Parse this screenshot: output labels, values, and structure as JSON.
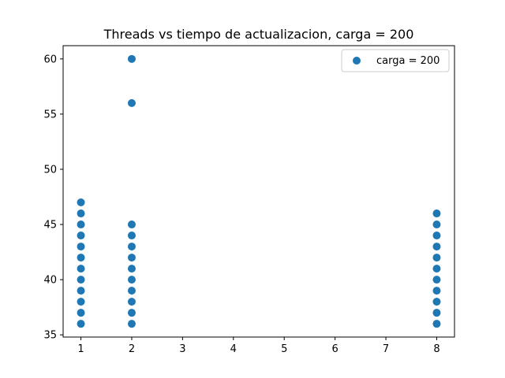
{
  "chart_data": {
    "type": "scatter",
    "title": "Threads vs tiempo de actualizacion, carga = 200",
    "xlabel": "",
    "ylabel": "",
    "xlim": [
      0.65,
      8.35
    ],
    "ylim": [
      34.8,
      61.2
    ],
    "xticks": [
      1,
      2,
      3,
      4,
      5,
      6,
      7,
      8
    ],
    "yticks": [
      35,
      40,
      45,
      50,
      55,
      60
    ],
    "grid": false,
    "legend_position": "upper-right",
    "series": [
      {
        "name": "carga = 200",
        "color": "#1f77b4",
        "points": [
          [
            1,
            36
          ],
          [
            1,
            37
          ],
          [
            1,
            38
          ],
          [
            1,
            39
          ],
          [
            1,
            40
          ],
          [
            1,
            41
          ],
          [
            1,
            42
          ],
          [
            1,
            43
          ],
          [
            1,
            44
          ],
          [
            1,
            45
          ],
          [
            1,
            46
          ],
          [
            1,
            47
          ],
          [
            2,
            36
          ],
          [
            2,
            37
          ],
          [
            2,
            38
          ],
          [
            2,
            39
          ],
          [
            2,
            40
          ],
          [
            2,
            41
          ],
          [
            2,
            42
          ],
          [
            2,
            43
          ],
          [
            2,
            44
          ],
          [
            2,
            45
          ],
          [
            2,
            56
          ],
          [
            2,
            60
          ],
          [
            8,
            36
          ],
          [
            8,
            37
          ],
          [
            8,
            38
          ],
          [
            8,
            39
          ],
          [
            8,
            40
          ],
          [
            8,
            41
          ],
          [
            8,
            42
          ],
          [
            8,
            43
          ],
          [
            8,
            44
          ],
          [
            8,
            45
          ],
          [
            8,
            46
          ]
        ]
      }
    ]
  }
}
